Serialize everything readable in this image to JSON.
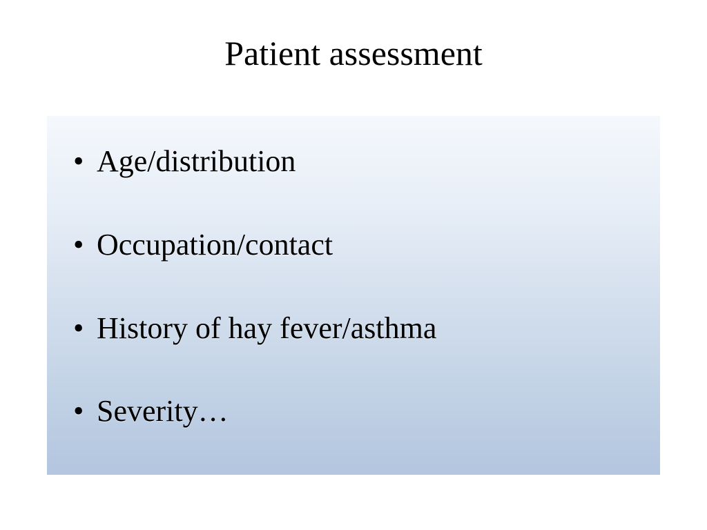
{
  "slide": {
    "title": "Patient assessment",
    "bullets": [
      "Age/distribution",
      "Occupation/contact",
      "History of hay fever/asthma",
      "Severity…"
    ],
    "title_fontsize": 50,
    "bullet_fontsize": 44,
    "title_color": "#000000",
    "bullet_color": "#000000",
    "background_color": "#ffffff",
    "content_gradient_top": "#f5f8fc",
    "content_gradient_bottom": "#b3c6df",
    "font_family": "Georgia, serif"
  }
}
